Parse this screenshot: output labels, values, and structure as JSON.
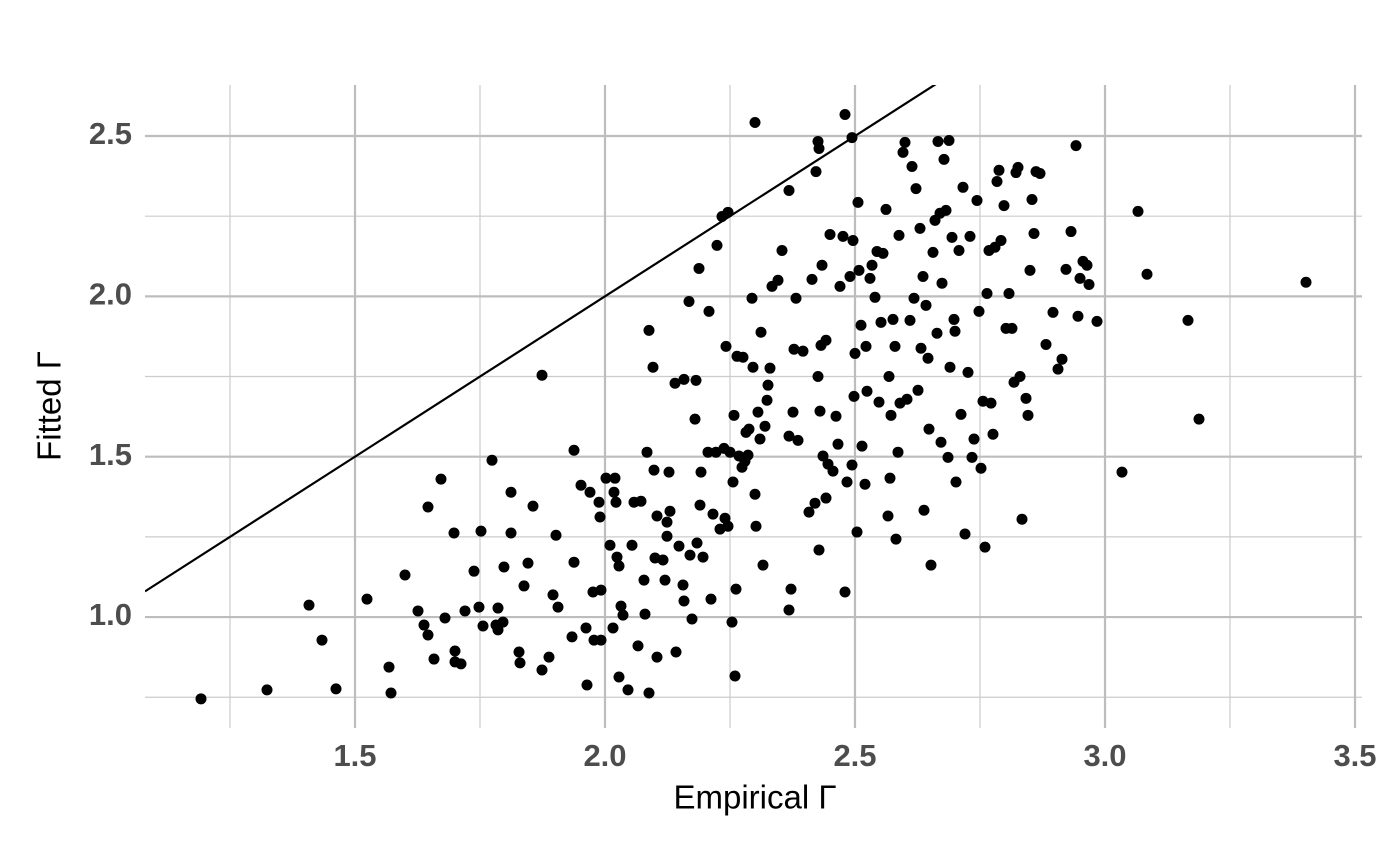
{
  "chart_data": {
    "type": "scatter",
    "xlabel": "Empirical Γ",
    "ylabel": "Fitted Γ",
    "xlim": [
      1.08,
      3.514
    ],
    "ylim": [
      0.654,
      2.659
    ],
    "xticks": [
      1.5,
      {
        "value": 2,
        "label": "2.0"
      },
      2.5,
      {
        "value": 3,
        "label": "3.0"
      },
      3.5
    ],
    "yticks": [
      {
        "value": 1,
        "label": "1.0"
      },
      1.5,
      {
        "value": 2,
        "label": "2.0"
      },
      2.5
    ],
    "x_minor_grid": [
      1.25,
      1.75,
      2.25,
      2.75,
      3.25
    ],
    "y_minor_grid": [
      0.75,
      1.25,
      1.75,
      2.25
    ],
    "grid": true,
    "color": "#000000",
    "reference_line": {
      "slope": 1,
      "intercept": 0,
      "color": "#000000"
    },
    "x": [
      1.192,
      1.324,
      1.408,
      1.434,
      1.462,
      1.524,
      1.568,
      1.572,
      1.6,
      1.626,
      1.638,
      1.646,
      1.646,
      1.658,
      1.672,
      1.68,
      1.698,
      1.7,
      1.7,
      1.712,
      1.72,
      1.738,
      1.748,
      1.752,
      1.756,
      1.774,
      1.782,
      1.786,
      1.786,
      1.796,
      1.798,
      1.812,
      1.812,
      1.828,
      1.83,
      1.838,
      1.846,
      1.856,
      1.874,
      1.874,
      1.888,
      1.896,
      1.902,
      1.906,
      1.934,
      1.938,
      1.938,
      1.952,
      1.962,
      1.964,
      1.97,
      1.976,
      1.978,
      1.988,
      1.99,
      1.992,
      1.992,
      2.002,
      2.01,
      2.016,
      2.018,
      2.02,
      2.022,
      2.024,
      2.028,
      2.028,
      2.032,
      2.036,
      2.046,
      2.054,
      2.058,
      2.066,
      2.072,
      2.078,
      2.08,
      2.084,
      2.088,
      2.088,
      2.096,
      2.098,
      2.1,
      2.104,
      2.104,
      2.116,
      2.12,
      2.124,
      2.124,
      2.128,
      2.13,
      2.14,
      2.142,
      2.148,
      2.156,
      2.158,
      2.158,
      2.168,
      2.17,
      2.174,
      2.18,
      2.182,
      2.184,
      2.188,
      2.19,
      2.192,
      2.196,
      2.206,
      2.208,
      2.212,
      2.216,
      2.222,
      2.224,
      2.23,
      2.234,
      2.238,
      2.24,
      2.242,
      2.246,
      2.246,
      2.25,
      2.254,
      2.256,
      2.258,
      2.26,
      2.262,
      2.264,
      2.268,
      2.274,
      2.276,
      2.28,
      2.282,
      2.286,
      2.288,
      2.294,
      2.296,
      2.3,
      2.3,
      2.302,
      2.306,
      2.31,
      2.312,
      2.316,
      2.32,
      2.324,
      2.326,
      2.33,
      2.334,
      2.346,
      2.354,
      2.368,
      2.368,
      2.368,
      2.372,
      2.376,
      2.378,
      2.382,
      2.386,
      2.396,
      2.408,
      2.414,
      2.42,
      2.422,
      2.426,
      2.426,
      2.428,
      2.428,
      2.43,
      2.432,
      2.434,
      2.436,
      2.442,
      2.442,
      2.446,
      2.45,
      2.456,
      2.462,
      2.466,
      2.47,
      2.476,
      2.48,
      2.48,
      2.484,
      2.49,
      2.494,
      2.494,
      2.496,
      2.498,
      2.5,
      2.504,
      2.506,
      2.508,
      2.512,
      2.514,
      2.52,
      2.522,
      2.524,
      2.53,
      2.534,
      2.54,
      2.544,
      2.548,
      2.552,
      2.556,
      2.562,
      2.566,
      2.568,
      2.57,
      2.572,
      2.576,
      2.58,
      2.582,
      2.586,
      2.588,
      2.59,
      2.596,
      2.6,
      2.604,
      2.61,
      2.614,
      2.618,
      2.622,
      2.626,
      2.63,
      2.632,
      2.636,
      2.638,
      2.642,
      2.646,
      2.648,
      2.652,
      2.656,
      2.66,
      2.664,
      2.666,
      2.67,
      2.672,
      2.674,
      2.678,
      2.682,
      2.686,
      2.688,
      2.69,
      2.694,
      2.698,
      2.7,
      2.702,
      2.708,
      2.712,
      2.716,
      2.72,
      2.726,
      2.73,
      2.734,
      2.738,
      2.744,
      2.748,
      2.752,
      2.756,
      2.76,
      2.764,
      2.768,
      2.772,
      2.776,
      2.78,
      2.784,
      2.788,
      2.792,
      2.798,
      2.802,
      2.808,
      2.814,
      2.818,
      2.822,
      2.826,
      2.83,
      2.834,
      2.842,
      2.846,
      2.85,
      2.854,
      2.858,
      2.862,
      2.87,
      2.882,
      2.896,
      2.906,
      2.914,
      2.922,
      2.932,
      2.942,
      2.946,
      2.95,
      2.956,
      2.964,
      2.968,
      2.984,
      3.066,
      3.034,
      3.084,
      3.166,
      3.188,
      3.402
    ],
    "y": [
      0.745,
      0.773,
      1.037,
      0.928,
      0.776,
      1.056,
      0.844,
      0.763,
      1.131,
      1.019,
      0.975,
      1.343,
      0.944,
      0.869,
      1.43,
      0.997,
      1.262,
      0.894,
      0.86,
      0.854,
      1.019,
      1.143,
      1.031,
      1.268,
      0.972,
      1.489,
      0.975,
      1.028,
      0.96,
      0.984,
      1.156,
      1.389,
      1.262,
      0.891,
      0.857,
      1.097,
      1.168,
      1.346,
      1.754,
      0.835,
      0.875,
      1.069,
      1.255,
      1.031,
      0.938,
      1.52,
      1.171,
      1.411,
      0.966,
      0.788,
      1.389,
      1.078,
      0.928,
      1.358,
      1.312,
      0.928,
      1.084,
      1.433,
      1.224,
      0.966,
      1.389,
      1.433,
      1.358,
      1.187,
      1.159,
      0.813,
      1.034,
      1.006,
      0.773,
      1.224,
      1.358,
      0.91,
      1.361,
      1.115,
      1.009,
      1.514,
      1.894,
      0.763,
      1.779,
      1.458,
      1.184,
      1.315,
      0.875,
      1.178,
      1.115,
      1.252,
      1.296,
      1.452,
      1.33,
      1.729,
      0.891,
      1.221,
      1.1,
      1.05,
      1.741,
      1.984,
      1.193,
      0.994,
      1.617,
      1.738,
      1.231,
      2.087,
      1.349,
      1.452,
      1.187,
      1.514,
      1.953,
      1.056,
      1.321,
      1.514,
      2.159,
      1.274,
      2.249,
      1.526,
      1.308,
      1.844,
      2.262,
      1.283,
      1.514,
      0.984,
      1.421,
      1.629,
      0.816,
      1.087,
      1.813,
      1.502,
      1.467,
      1.81,
      1.486,
      1.576,
      1.505,
      1.586,
      1.994,
      1.779,
      2.542,
      1.383,
      1.283,
      1.639,
      1.555,
      1.888,
      1.162,
      1.595,
      1.676,
      1.723,
      1.776,
      2.031,
      2.05,
      2.143,
      2.33,
      1.564,
      1.022,
      1.087,
      1.639,
      1.835,
      1.994,
      1.551,
      1.829,
      1.327,
      2.053,
      1.355,
      2.389,
      2.483,
      1.75,
      2.461,
      1.209,
      1.642,
      1.847,
      2.097,
      1.502,
      1.863,
      1.371,
      1.477,
      2.193,
      1.455,
      1.626,
      1.539,
      2.031,
      2.187,
      2.567,
      1.078,
      1.421,
      2.062,
      2.495,
      1.474,
      2.174,
      1.688,
      1.822,
      1.265,
      2.293,
      2.081,
      1.91,
      1.533,
      1.414,
      1.844,
      1.704,
      2.056,
      2.097,
      1.997,
      2.14,
      1.67,
      1.919,
      2.134,
      2.271,
      1.315,
      1.75,
      1.433,
      1.629,
      1.928,
      1.844,
      1.243,
      1.514,
      2.19,
      1.667,
      2.449,
      2.48,
      1.679,
      1.925,
      2.405,
      1.994,
      2.336,
      1.707,
      2.212,
      1.838,
      2.062,
      1.333,
      1.972,
      1.807,
      1.586,
      1.162,
      2.137,
      2.237,
      1.885,
      2.483,
      2.259,
      1.545,
      2.041,
      2.427,
      2.268,
      1.498,
      2.486,
      1.779,
      2.184,
      1.928,
      1.891,
      1.421,
      2.143,
      1.632,
      2.34,
      1.259,
      1.763,
      2.187,
      1.498,
      1.555,
      2.299,
      1.953,
      1.464,
      1.673,
      1.218,
      2.009,
      2.143,
      1.667,
      1.57,
      2.153,
      2.358,
      2.393,
      2.174,
      2.283,
      1.9,
      2.009,
      1.9,
      1.732,
      2.386,
      2.402,
      1.75,
      1.305,
      1.682,
      1.629,
      2.081,
      2.302,
      2.196,
      2.389,
      2.383,
      1.85,
      1.95,
      1.773,
      1.804,
      2.084,
      2.202,
      2.47,
      1.938,
      2.056,
      2.109,
      2.097,
      2.037,
      1.922,
      2.265,
      1.452,
      2.069,
      1.925,
      1.617,
      2.044
    ]
  }
}
